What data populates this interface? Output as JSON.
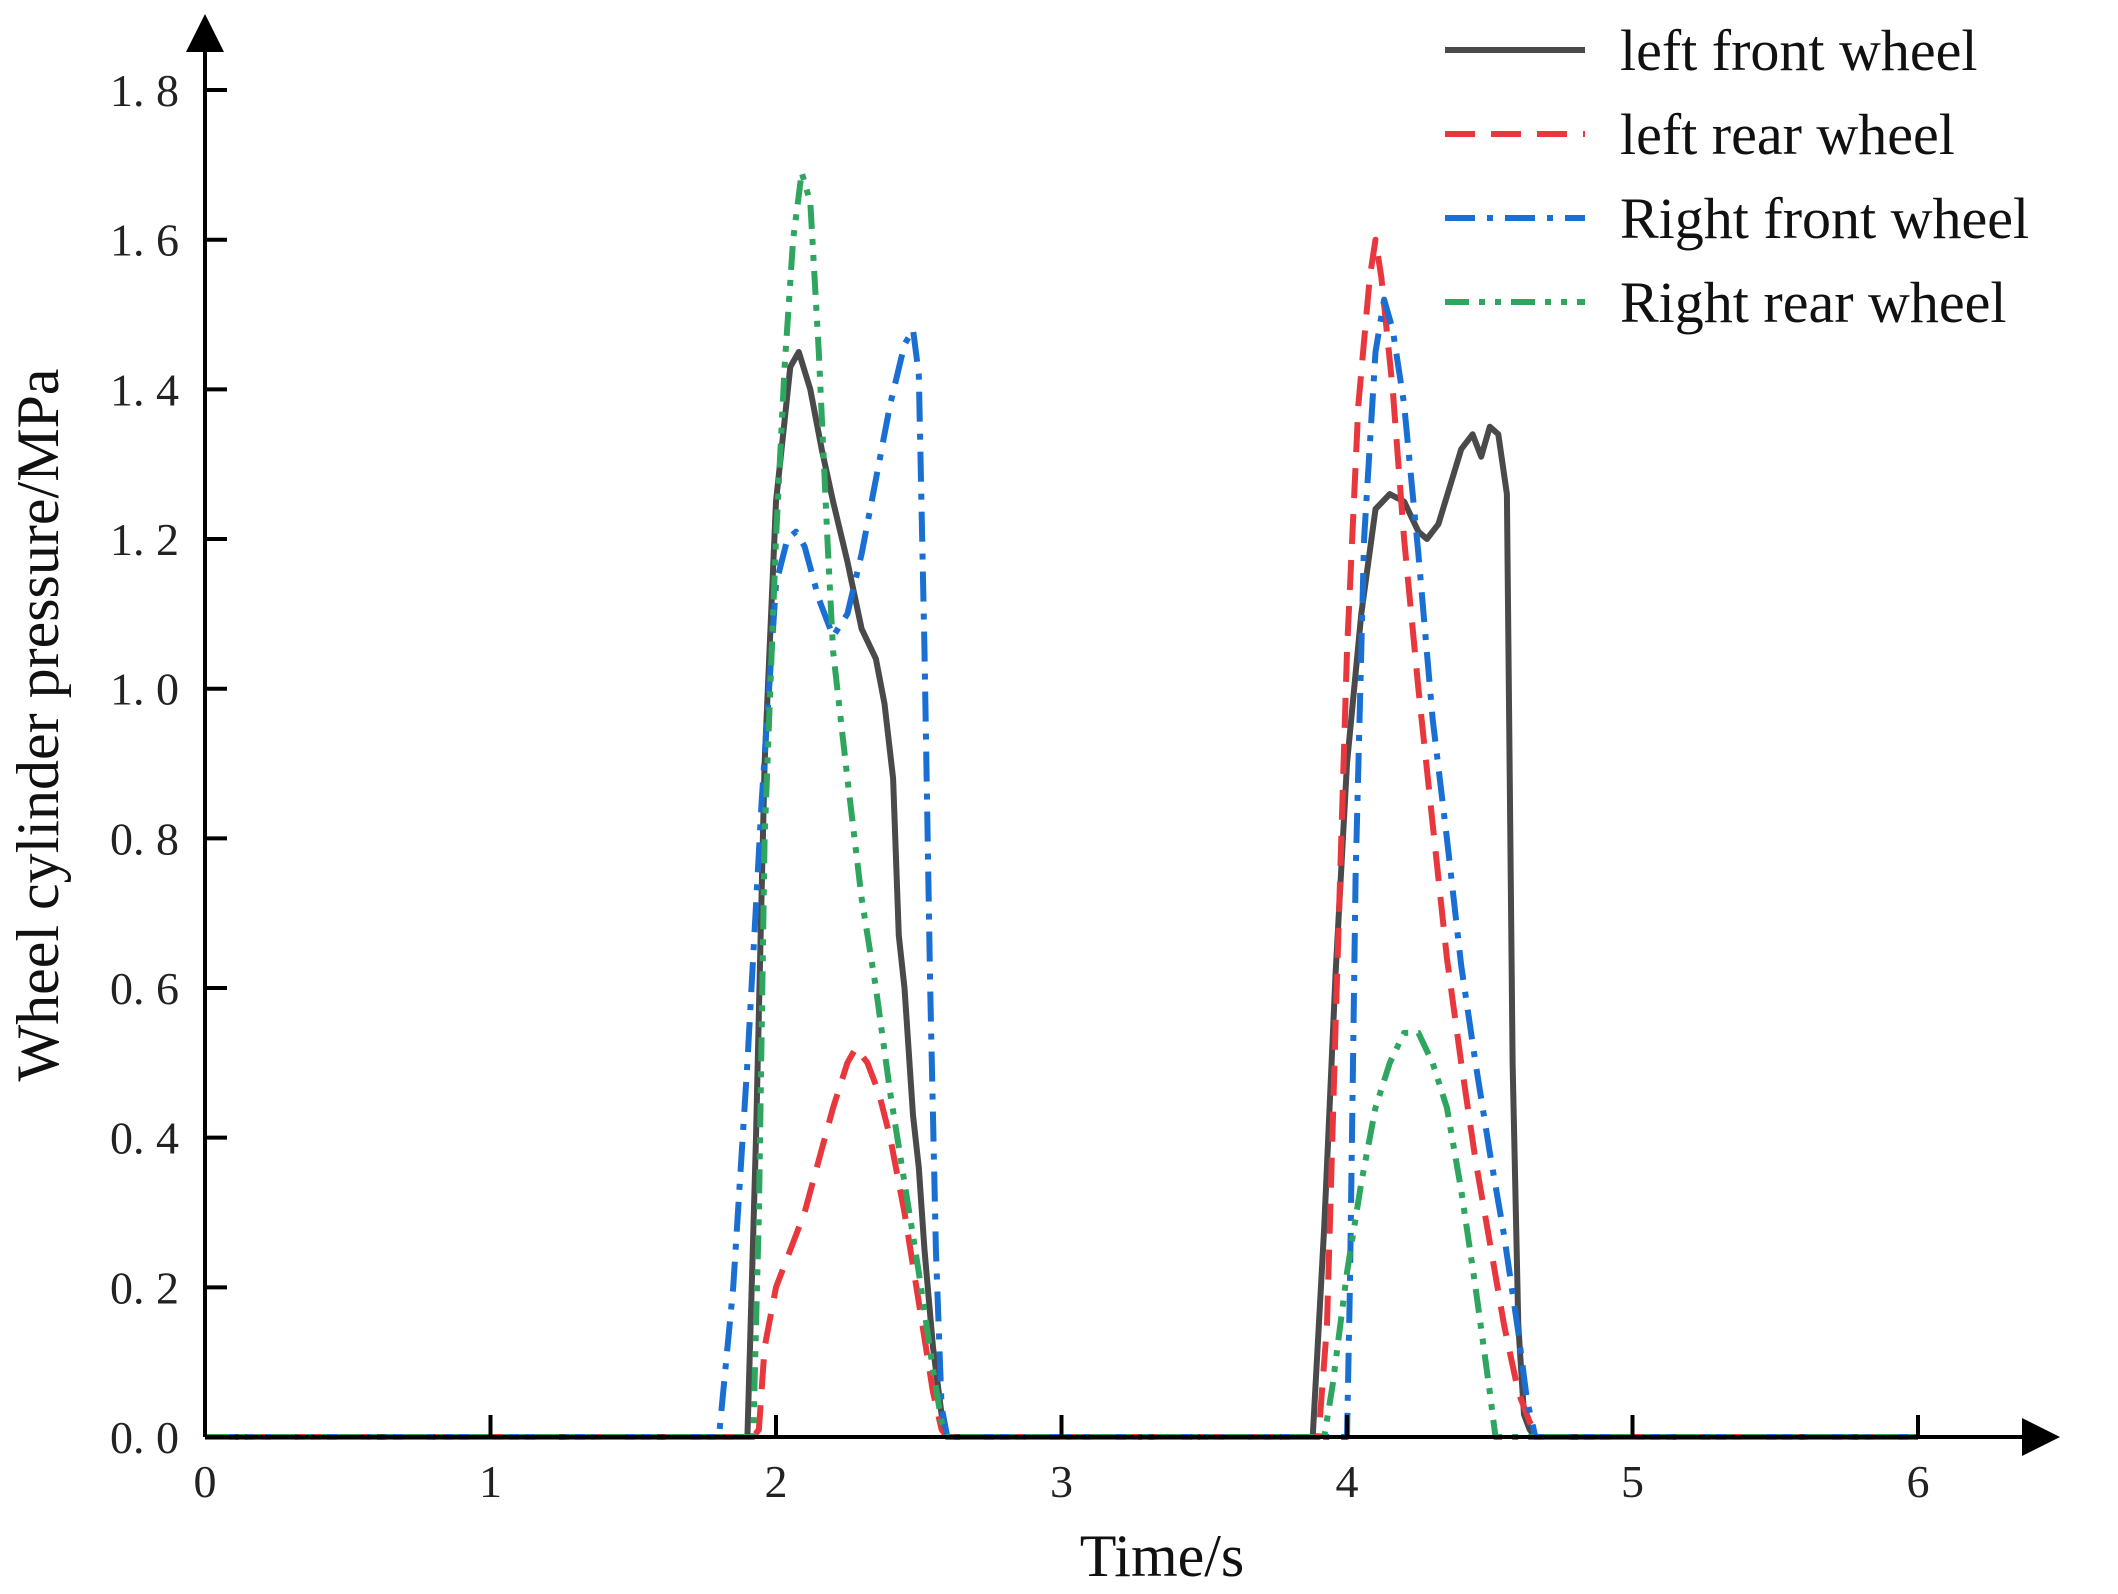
{
  "chart_data": {
    "type": "line",
    "title": "",
    "xlabel": "Time/s",
    "ylabel": "Wheel cylinder pressure/MPa",
    "xlim": [
      0,
      6.5
    ],
    "ylim": [
      0,
      1.8
    ],
    "xticks": [
      0,
      1,
      2,
      3,
      4,
      5,
      6
    ],
    "xtick_labels": [
      "0",
      "1",
      "2",
      "3",
      "4",
      "5",
      "6"
    ],
    "yticks": [
      0,
      0.2,
      0.4,
      0.6,
      0.8,
      1.0,
      1.2,
      1.4,
      1.6,
      1.8
    ],
    "ytick_labels": [
      "0. 0",
      "0. 2",
      "0. 4",
      "0. 6",
      "0. 8",
      "1. 0",
      "1. 2",
      "1. 4",
      "1. 6",
      "1. 8"
    ],
    "grid": false,
    "legend_position": "top-right",
    "series": [
      {
        "name": "left front wheel",
        "color": "#4a4a4a",
        "dash": "solid",
        "x": [
          0,
          1.9,
          1.93,
          1.96,
          2.0,
          2.05,
          2.08,
          2.12,
          2.16,
          2.2,
          2.25,
          2.3,
          2.35,
          2.38,
          2.41,
          2.43,
          2.45,
          2.48,
          2.5,
          2.52,
          2.55,
          2.58,
          2.6,
          3.88,
          3.92,
          3.96,
          4.0,
          4.05,
          4.1,
          4.15,
          4.2,
          4.25,
          4.28,
          4.32,
          4.36,
          4.4,
          4.44,
          4.47,
          4.5,
          4.53,
          4.56,
          4.58,
          4.6,
          4.62,
          4.64,
          4.66,
          6.0
        ],
        "y": [
          0,
          0,
          0.4,
          0.9,
          1.25,
          1.43,
          1.45,
          1.4,
          1.32,
          1.25,
          1.17,
          1.08,
          1.04,
          0.98,
          0.88,
          0.67,
          0.6,
          0.43,
          0.36,
          0.25,
          0.12,
          0.03,
          0,
          0,
          0.28,
          0.62,
          0.9,
          1.1,
          1.24,
          1.26,
          1.25,
          1.21,
          1.2,
          1.22,
          1.27,
          1.32,
          1.34,
          1.31,
          1.35,
          1.34,
          1.26,
          0.5,
          0.15,
          0.03,
          0.01,
          0,
          0
        ]
      },
      {
        "name": "left rear wheel",
        "color": "#e8383d",
        "dash": "dashed",
        "x": [
          0,
          1.92,
          1.94,
          1.96,
          2.0,
          2.05,
          2.1,
          2.15,
          2.2,
          2.25,
          2.28,
          2.32,
          2.36,
          2.4,
          2.45,
          2.5,
          2.55,
          2.58,
          2.6,
          3.9,
          3.93,
          3.96,
          4.0,
          4.04,
          4.08,
          4.1,
          4.12,
          4.16,
          4.2,
          4.25,
          4.3,
          4.35,
          4.4,
          4.45,
          4.5,
          4.55,
          4.6,
          4.64,
          4.67,
          6.0
        ],
        "y": [
          0,
          0,
          0.01,
          0.12,
          0.2,
          0.25,
          0.3,
          0.37,
          0.44,
          0.5,
          0.52,
          0.5,
          0.46,
          0.4,
          0.3,
          0.18,
          0.06,
          0.01,
          0,
          0,
          0.15,
          0.55,
          1.05,
          1.38,
          1.55,
          1.6,
          1.55,
          1.4,
          1.2,
          1.0,
          0.82,
          0.64,
          0.5,
          0.37,
          0.26,
          0.15,
          0.06,
          0.02,
          0,
          0
        ]
      },
      {
        "name": "Right front wheel",
        "color": "#1a6fd4",
        "dash": "dashdot",
        "x": [
          0,
          1.8,
          1.85,
          1.9,
          1.95,
          2.0,
          2.04,
          2.07,
          2.1,
          2.15,
          2.2,
          2.25,
          2.3,
          2.35,
          2.4,
          2.45,
          2.48,
          2.5,
          2.52,
          2.54,
          2.56,
          2.58,
          2.6,
          4.0,
          4.01,
          4.03,
          4.06,
          4.1,
          4.13,
          4.16,
          4.2,
          4.25,
          4.3,
          4.35,
          4.4,
          4.45,
          4.5,
          4.55,
          4.6,
          4.63,
          4.66,
          6.0
        ],
        "y": [
          0,
          0,
          0.2,
          0.5,
          0.85,
          1.14,
          1.2,
          1.21,
          1.19,
          1.12,
          1.07,
          1.1,
          1.18,
          1.28,
          1.38,
          1.46,
          1.48,
          1.42,
          1.05,
          0.6,
          0.25,
          0.04,
          0,
          0,
          0.2,
          0.75,
          1.2,
          1.45,
          1.52,
          1.48,
          1.38,
          1.18,
          0.96,
          0.8,
          0.63,
          0.5,
          0.38,
          0.27,
          0.14,
          0.05,
          0,
          0
        ]
      },
      {
        "name": "Right rear wheel",
        "color": "#2ea660",
        "dash": "dashdotdot",
        "x": [
          0,
          1.92,
          1.94,
          1.96,
          2.0,
          2.03,
          2.06,
          2.09,
          2.12,
          2.15,
          2.18,
          2.2,
          2.25,
          2.3,
          2.35,
          2.4,
          2.45,
          2.5,
          2.55,
          2.58,
          2.6,
          3.92,
          3.95,
          4.0,
          4.05,
          4.1,
          4.15,
          4.2,
          4.25,
          4.3,
          4.35,
          4.4,
          4.45,
          4.5,
          4.52,
          6.0
        ],
        "y": [
          0,
          0,
          0.3,
          0.8,
          1.2,
          1.43,
          1.6,
          1.69,
          1.65,
          1.45,
          1.2,
          1.05,
          0.88,
          0.72,
          0.6,
          0.46,
          0.34,
          0.22,
          0.09,
          0.02,
          0,
          0,
          0.07,
          0.22,
          0.34,
          0.44,
          0.5,
          0.54,
          0.54,
          0.5,
          0.44,
          0.33,
          0.2,
          0.06,
          0,
          0
        ]
      }
    ]
  }
}
